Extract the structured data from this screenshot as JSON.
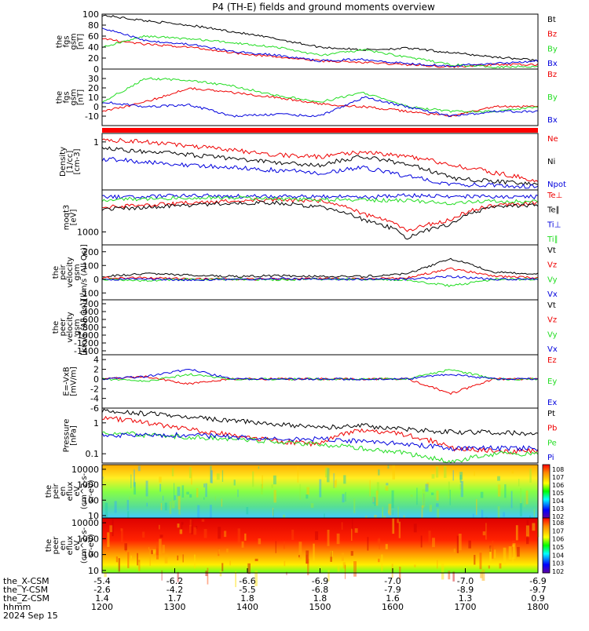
{
  "title": "P4 (TH-E) fields and ground moments overview",
  "colors": {
    "black": "#000000",
    "red": "#ee0000",
    "green": "#22dd22",
    "blue": "#0000dd"
  },
  "chart_data": [
    {
      "type": "line",
      "ylabel": [
        "the",
        "fgs",
        "gsm",
        "[nT]"
      ],
      "yticks": [
        0,
        20,
        40,
        60,
        80,
        100
      ],
      "ylim": [
        0,
        100
      ],
      "series": [
        {
          "name": "Bt",
          "color": "black",
          "values": [
            98,
            88,
            80,
            68,
            55,
            40,
            35,
            38,
            30,
            22,
            16
          ]
        },
        {
          "name": "Bz",
          "color": "red",
          "values": [
            55,
            45,
            40,
            30,
            22,
            15,
            12,
            8,
            4,
            8,
            8
          ]
        },
        {
          "name": "By",
          "color": "green",
          "values": [
            40,
            60,
            55,
            48,
            40,
            25,
            35,
            22,
            8,
            4,
            5
          ]
        },
        {
          "name": "Bx",
          "color": "blue",
          "values": [
            75,
            52,
            45,
            32,
            25,
            15,
            18,
            10,
            6,
            10,
            15
          ]
        }
      ]
    },
    {
      "type": "line",
      "ylabel": [
        "the",
        "fgs",
        "gsm",
        "[nT]"
      ],
      "yticks": [
        -10,
        0,
        10,
        20,
        30
      ],
      "ylim": [
        -20,
        40
      ],
      "series": [
        {
          "name": "Bz",
          "color": "red",
          "values": [
            -5,
            5,
            20,
            15,
            10,
            3,
            0,
            -5,
            -10,
            0,
            0
          ]
        },
        {
          "name": "By",
          "color": "green",
          "values": [
            5,
            30,
            28,
            22,
            12,
            5,
            15,
            0,
            -5,
            -5,
            0
          ]
        },
        {
          "name": "Bx",
          "color": "blue",
          "values": [
            5,
            0,
            2,
            -10,
            -8,
            -10,
            10,
            0,
            -10,
            -5,
            -5
          ]
        }
      ]
    },
    {
      "type": "line",
      "ylabel": [
        "Density",
        "[1/cc]",
        "[cm-3]"
      ],
      "yticks": [
        1
      ],
      "ylog": true,
      "ylim": [
        0.02,
        2
      ],
      "series": [
        {
          "name": "Ne",
          "color": "red",
          "values": [
            1.2,
            1.0,
            0.7,
            0.5,
            0.35,
            0.3,
            0.45,
            0.3,
            0.15,
            0.08,
            0.04
          ]
        },
        {
          "name": "Ni",
          "color": "black",
          "values": [
            0.6,
            0.45,
            0.35,
            0.25,
            0.18,
            0.15,
            0.3,
            0.15,
            0.05,
            0.04,
            0.03
          ]
        },
        {
          "name": "Npot",
          "color": "blue",
          "values": [
            0.25,
            0.2,
            0.15,
            0.12,
            0.1,
            0.08,
            0.12,
            0.06,
            0.03,
            0.03,
            0.025
          ]
        }
      ]
    },
    {
      "type": "line",
      "ylabel": [
        "moqt3",
        "[eV]"
      ],
      "yticks": [
        1000
      ],
      "ylog": true,
      "ylim": [
        300,
        50000
      ],
      "series": [
        {
          "name": "Te⊥",
          "color": "red",
          "values": [
            10000,
            12000,
            15000,
            18000,
            20000,
            18000,
            5000,
            1000,
            3000,
            12000,
            15000
          ]
        },
        {
          "name": "Te∥",
          "color": "black",
          "values": [
            8000,
            10000,
            12000,
            15000,
            15000,
            10000,
            3000,
            500,
            2000,
            10000,
            12000
          ]
        },
        {
          "name": "Ti⊥",
          "color": "blue",
          "values": [
            25000,
            27000,
            30000,
            28000,
            27000,
            28000,
            25000,
            30000,
            28000,
            27000,
            26000
          ]
        },
        {
          "name": "Ti∥",
          "color": "green",
          "values": [
            20000,
            22000,
            25000,
            24000,
            22000,
            20000,
            20000,
            18000,
            15000,
            17000,
            18000
          ]
        }
      ]
    },
    {
      "type": "line",
      "ylabel": [
        "the",
        "peir",
        "velocity",
        "gsm",
        "[km/s (All Qs)]"
      ],
      "yticks": [
        -100,
        0,
        100,
        200
      ],
      "ylim": [
        -150,
        250
      ],
      "series": [
        {
          "name": "Vt",
          "color": "black",
          "values": [
            20,
            40,
            30,
            20,
            25,
            20,
            20,
            40,
            150,
            50,
            40
          ]
        },
        {
          "name": "Vz",
          "color": "red",
          "values": [
            10,
            10,
            5,
            0,
            0,
            5,
            0,
            10,
            80,
            20,
            10
          ]
        },
        {
          "name": "Vy",
          "color": "green",
          "values": [
            0,
            -10,
            0,
            0,
            -5,
            0,
            0,
            -5,
            -50,
            0,
            0
          ]
        },
        {
          "name": "Vx",
          "color": "blue",
          "values": [
            0,
            0,
            -5,
            0,
            5,
            0,
            0,
            0,
            20,
            0,
            0
          ]
        }
      ]
    },
    {
      "type": "line",
      "ylabel": [
        "the",
        "peer",
        "velocity",
        "gsm",
        "[km/s (All Qs)]"
      ],
      "yticks": [
        -1400,
        -1200,
        -1000,
        -800,
        -600,
        -400,
        -200
      ],
      "ylim": [
        -1500,
        -100
      ],
      "series": [
        {
          "name": "Vt",
          "color": "black",
          "values": []
        },
        {
          "name": "Vz",
          "color": "red",
          "values": []
        },
        {
          "name": "Vy",
          "color": "green",
          "values": []
        },
        {
          "name": "Vx",
          "color": "blue",
          "values": []
        }
      ]
    },
    {
      "type": "line",
      "ylabel": [
        "E=-VxB",
        "[mV/m]"
      ],
      "yticks": [
        -6,
        -4,
        -2,
        0,
        2,
        4
      ],
      "ylim": [
        -6,
        5
      ],
      "series": [
        {
          "name": "Ez",
          "color": "red",
          "values": [
            0,
            0.5,
            -1,
            0,
            0,
            0,
            0,
            0,
            -3,
            0,
            0
          ]
        },
        {
          "name": "Ey",
          "color": "green",
          "values": [
            0,
            -0.5,
            1,
            0,
            0,
            0,
            0,
            0,
            2,
            0,
            0
          ]
        },
        {
          "name": "Ex",
          "color": "blue",
          "values": [
            0,
            0.5,
            2,
            0,
            0,
            0,
            0,
            0,
            1,
            0,
            0
          ]
        }
      ]
    },
    {
      "type": "line",
      "ylabel": [
        "Pressure",
        "[nPa]"
      ],
      "yticks": [
        0.1,
        1.0
      ],
      "ylog": true,
      "ylim": [
        0.05,
        3
      ],
      "series": [
        {
          "name": "Pt",
          "color": "black",
          "values": [
            2.5,
            2.0,
            1.5,
            1.2,
            0.9,
            0.7,
            0.8,
            0.6,
            0.5,
            0.5,
            0.45
          ]
        },
        {
          "name": "Pb",
          "color": "red",
          "values": [
            1.5,
            1.0,
            0.6,
            0.4,
            0.25,
            0.2,
            0.6,
            0.4,
            0.15,
            0.12,
            0.12
          ]
        },
        {
          "name": "Pe",
          "color": "green",
          "values": [
            0.5,
            0.4,
            0.35,
            0.3,
            0.25,
            0.2,
            0.15,
            0.1,
            0.05,
            0.1,
            0.1
          ]
        },
        {
          "name": "Pi",
          "color": "blue",
          "values": [
            0.4,
            0.4,
            0.4,
            0.35,
            0.3,
            0.3,
            0.25,
            0.2,
            0.15,
            0.15,
            0.15
          ]
        }
      ]
    },
    {
      "type": "heatmap",
      "ylabel": [
        "the",
        "peir",
        "en",
        "eflux",
        "eV",
        "(cm^2-s-",
        "sr-eV)"
      ],
      "yticks": [
        10,
        100,
        1000,
        10000
      ],
      "ylog": true,
      "ylim": [
        7,
        20000
      ],
      "colorbar": {
        "label": "[eV/(cm^2-s-sr-eV)]",
        "ticks": [
          "10^8",
          "10^7",
          "10^6",
          "10^5",
          "10^4",
          "10^3",
          "10^2"
        ]
      }
    },
    {
      "type": "heatmap",
      "ylabel": [
        "the",
        "peer",
        "en",
        "eflux",
        "eV",
        "(cm^2-s-",
        "sr-eV)"
      ],
      "yticks": [
        10,
        100,
        1000,
        10000
      ],
      "ylog": true,
      "ylim": [
        7,
        20000
      ],
      "colorbar": {
        "label": "[eV/(cm^2-s-sr-eV)]",
        "ticks": [
          "10^8",
          "10^7",
          "10^6",
          "10^5",
          "10^4",
          "10^3",
          "10^2"
        ]
      }
    }
  ],
  "x_axis": {
    "time_range": [
      "1200",
      "1800"
    ],
    "labels_left": [
      "the_X-CSM",
      "the_Y-CSM",
      "the_Z-CSM",
      "hhmm",
      "2024 Sep 15"
    ],
    "ticks": [
      {
        "hhmm": "1200",
        "x": "-5.4",
        "y": "-2.6",
        "z": "1.4"
      },
      {
        "hhmm": "1300",
        "x": "-6.2",
        "y": "-4.2",
        "z": "1.7"
      },
      {
        "hhmm": "1400",
        "x": "-6.6",
        "y": "-5.5",
        "z": "1.8"
      },
      {
        "hhmm": "1500",
        "x": "-6.9",
        "y": "-6.8",
        "z": "1.8"
      },
      {
        "hhmm": "1600",
        "x": "-7.0",
        "y": "-7.9",
        "z": "1.6"
      },
      {
        "hhmm": "1700",
        "x": "-7.0",
        "y": "-8.9",
        "z": "1.3"
      },
      {
        "hhmm": "1800",
        "x": "-6.9",
        "y": "-9.7",
        "z": "0.9"
      }
    ]
  }
}
